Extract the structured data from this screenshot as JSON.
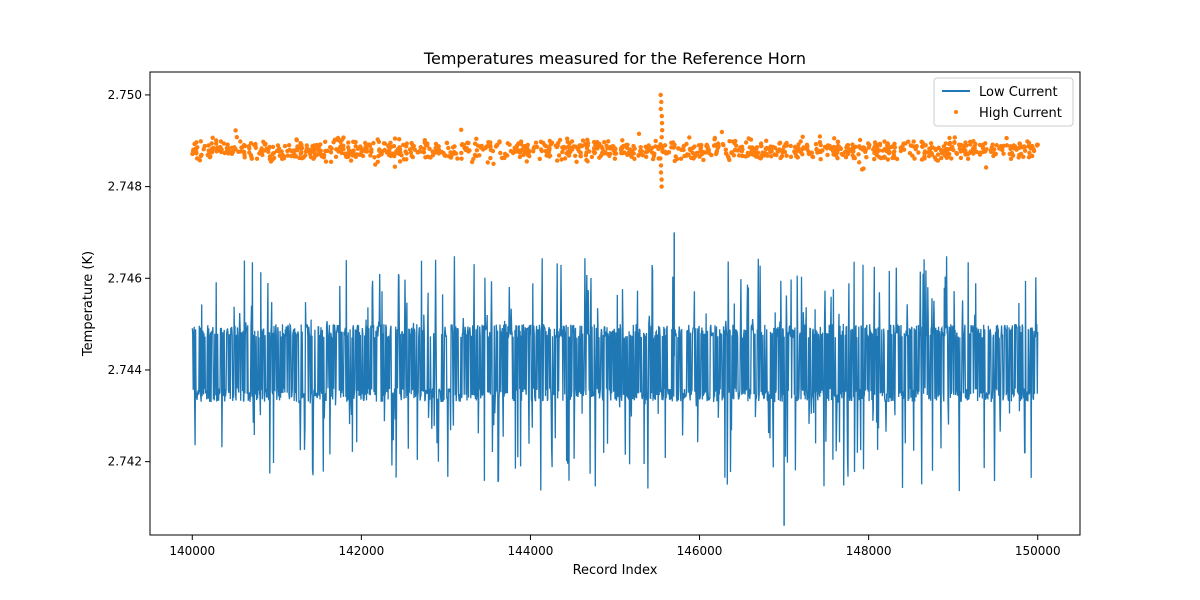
{
  "chart_data": {
    "type": "line+scatter",
    "title": "Temperatures measured for the Reference Horn",
    "xlabel": "Record Index",
    "ylabel": "Temperature (K)",
    "xlim": [
      139500,
      150500
    ],
    "ylim": [
      2.7404,
      2.7505
    ],
    "xticks": [
      140000,
      142000,
      144000,
      146000,
      148000,
      150000
    ],
    "xtick_labels": [
      "140000",
      "142000",
      "144000",
      "146000",
      "148000",
      "150000"
    ],
    "yticks": [
      2.742,
      2.744,
      2.746,
      2.748,
      2.75
    ],
    "ytick_labels": [
      "2.742",
      "2.744",
      "2.746",
      "2.748",
      "2.750"
    ],
    "legend_position": "top-right",
    "series": [
      {
        "name": "Low Current",
        "kind": "line",
        "color": "#1f77b4",
        "x_range": [
          140000,
          150000
        ],
        "band": [
          2.7433,
          2.745
        ],
        "mean": 2.7441,
        "min": 2.7406,
        "max": 2.747
      },
      {
        "name": "High Current",
        "kind": "scatter",
        "color": "#ff7f0e",
        "x_range": [
          140000,
          150000
        ],
        "band": [
          2.7486,
          2.749
        ],
        "mean": 2.7488,
        "min": 2.748,
        "max": 2.75
      }
    ]
  }
}
